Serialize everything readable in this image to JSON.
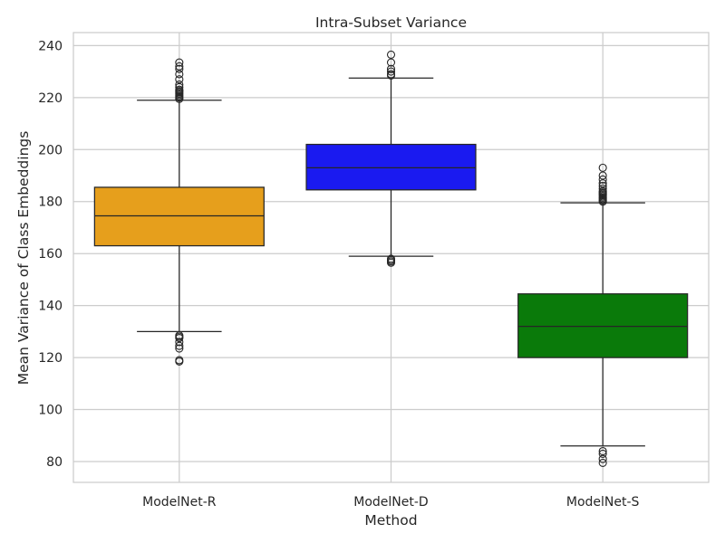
{
  "chart_data": {
    "type": "box",
    "title": "Intra-Subset Variance",
    "xlabel": "Method",
    "ylabel": "Mean Variance of Class Embeddings",
    "ylim": [
      72,
      245
    ],
    "yticks": [
      80,
      100,
      120,
      140,
      160,
      180,
      200,
      220,
      240
    ],
    "grid": true,
    "categories": [
      "ModelNet-R",
      "ModelNet-D",
      "ModelNet-S"
    ],
    "boxes": [
      {
        "name": "ModelNet-R",
        "color": "#E69F1C",
        "whisker_low": 130,
        "q1": 163,
        "median": 174.5,
        "q3": 185.5,
        "whisker_high": 219,
        "outliers": [
          118.5,
          119,
          123.5,
          124.5,
          126,
          127.5,
          128,
          128.5,
          219.5,
          220,
          220.5,
          221,
          221.5,
          222,
          222.5,
          223,
          224,
          225,
          227,
          229,
          231,
          232,
          233.5
        ]
      },
      {
        "name": "ModelNet-D",
        "color": "#1A1AF0",
        "whisker_low": 159,
        "q1": 184.5,
        "median": 193,
        "q3": 202,
        "whisker_high": 227.5,
        "outliers": [
          156.5,
          157,
          157.5,
          158,
          228.5,
          229,
          230,
          231,
          233.5,
          236.5
        ]
      },
      {
        "name": "ModelNet-S",
        "color": "#0A7A0A",
        "whisker_low": 86,
        "q1": 120,
        "median": 132,
        "q3": 144.5,
        "whisker_high": 179.5,
        "outliers": [
          79.5,
          81,
          83,
          84,
          180,
          180.5,
          181,
          181.5,
          182,
          182.5,
          183,
          183.5,
          184,
          185,
          186,
          187,
          188.5,
          190,
          193
        ]
      }
    ]
  }
}
